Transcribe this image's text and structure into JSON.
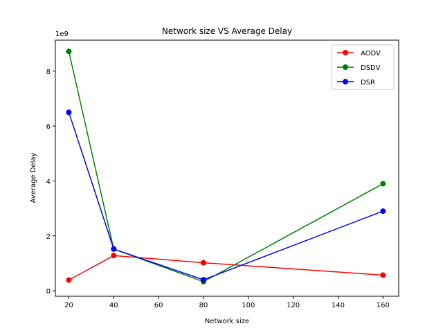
{
  "chart_data": {
    "type": "line",
    "title": "Network size VS Average Delay",
    "xlabel": "Network size",
    "ylabel": "Average Delay",
    "y_offset_label": "1e9",
    "y_scale": 1000000000,
    "x": [
      20,
      40,
      80,
      160
    ],
    "xlim": [
      14,
      167
    ],
    "ylim": [
      -200000000,
      9130000000
    ],
    "x_ticks": [
      20,
      40,
      60,
      80,
      100,
      120,
      140,
      160
    ],
    "y_ticks": [
      0,
      2,
      4,
      6,
      8
    ],
    "grid": false,
    "legend_position": "top-right",
    "markers": "circle",
    "series": [
      {
        "name": "AODV",
        "color": "#ff0000",
        "values": [
          390000000,
          1280000000,
          1020000000,
          570000000
        ]
      },
      {
        "name": "DSDV",
        "color": "#008000",
        "values": [
          8720000000,
          1520000000,
          330000000,
          3900000000
        ]
      },
      {
        "name": "DSR",
        "color": "#0000ff",
        "values": [
          6500000000,
          1520000000,
          400000000,
          2900000000
        ]
      }
    ]
  }
}
